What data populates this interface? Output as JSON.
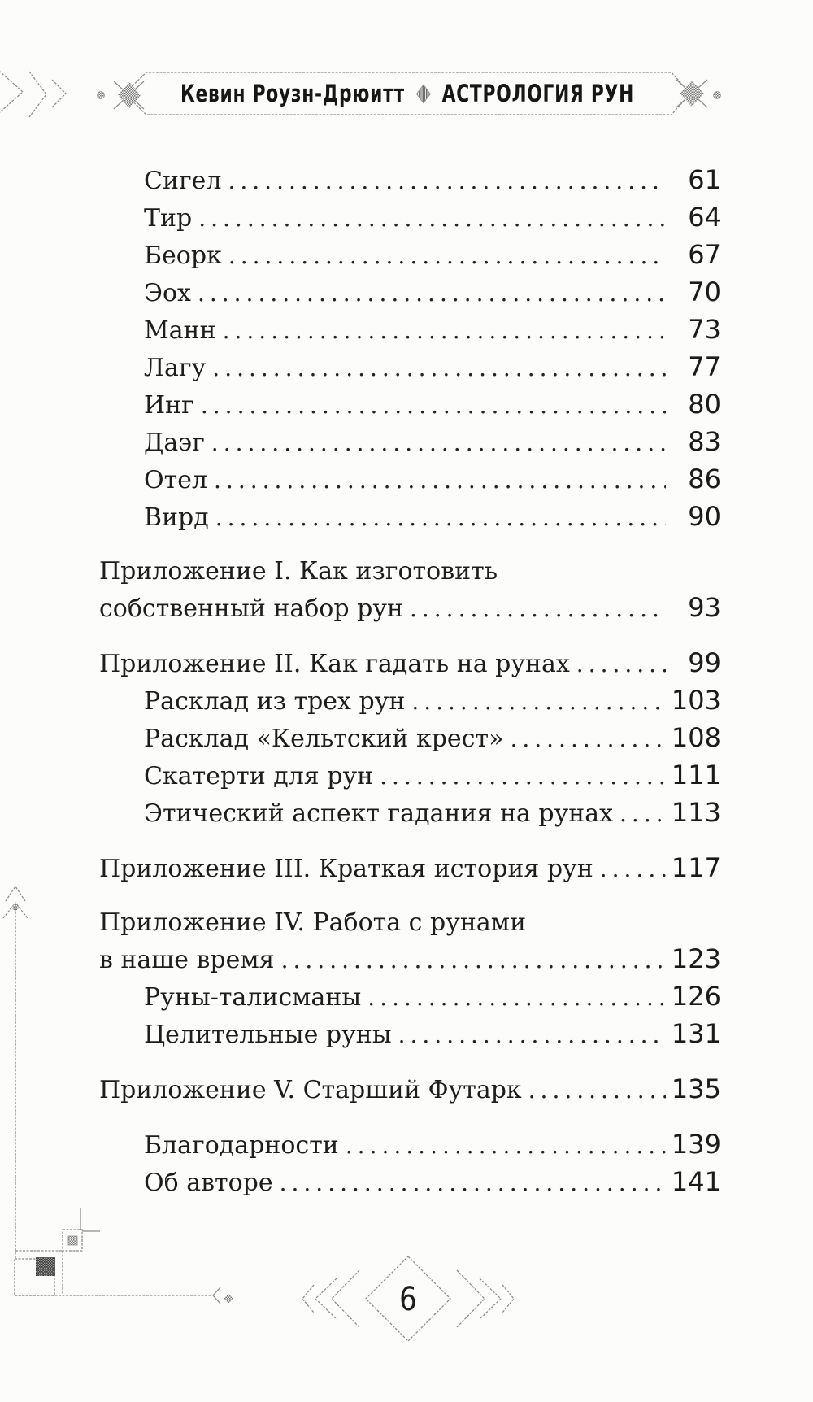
{
  "page": {
    "background_color": "#fcfcfb",
    "ink_color": "#1d1d1d",
    "ornament_color": "#8d8d8d"
  },
  "header": {
    "author": "Кевин Роузн-Дрюитт",
    "separator_icon": "diamond-icon",
    "book_title": "АСТРОЛОГИЯ РУН"
  },
  "toc": {
    "entries": [
      {
        "lines": [
          "Сигел"
        ],
        "page": "61",
        "indent": 1
      },
      {
        "lines": [
          "Тир"
        ],
        "page": "64",
        "indent": 1
      },
      {
        "lines": [
          "Беорк"
        ],
        "page": "67",
        "indent": 1
      },
      {
        "lines": [
          "Эох"
        ],
        "page": "70",
        "indent": 1
      },
      {
        "lines": [
          "Манн"
        ],
        "page": "73",
        "indent": 1
      },
      {
        "lines": [
          "Лагу"
        ],
        "page": "77",
        "indent": 1
      },
      {
        "lines": [
          "Инг"
        ],
        "page": "80",
        "indent": 1
      },
      {
        "lines": [
          "Даэг"
        ],
        "page": "83",
        "indent": 1
      },
      {
        "lines": [
          "Отел"
        ],
        "page": "86",
        "indent": 1
      },
      {
        "lines": [
          "Вирд"
        ],
        "page": "90",
        "indent": 1
      },
      {
        "lines": [
          "Приложение I. Как изготовить",
          "собственный набор рун"
        ],
        "page": "93",
        "indent": 0,
        "space_before": true
      },
      {
        "lines": [
          "Приложение II. Как гадать на рунах"
        ],
        "page": "99",
        "indent": 0,
        "space_before": true
      },
      {
        "lines": [
          "Расклад из трех рун"
        ],
        "page": "103",
        "indent": 1
      },
      {
        "lines": [
          "Расклад «Кельтский крест»"
        ],
        "page": "108",
        "indent": 1
      },
      {
        "lines": [
          "Скатерти для рун"
        ],
        "page": "111",
        "indent": 1
      },
      {
        "lines": [
          "Этический аспект гадания на рунах"
        ],
        "page": "113",
        "indent": 1
      },
      {
        "lines": [
          "Приложение III. Краткая история рун"
        ],
        "page": "117",
        "indent": 0,
        "space_before": true
      },
      {
        "lines": [
          "Приложение IV. Работа с рунами",
          "в наше время"
        ],
        "page": "123",
        "indent": 0,
        "space_before": true
      },
      {
        "lines": [
          "Руны-талисманы"
        ],
        "page": "126",
        "indent": 1
      },
      {
        "lines": [
          "Целительные руны"
        ],
        "page": "131",
        "indent": 1
      },
      {
        "lines": [
          "Приложение V. Старший Футарк"
        ],
        "page": "135",
        "indent": 0,
        "space_before": true
      },
      {
        "lines": [
          "Благодарности"
        ],
        "page": "139",
        "indent": 1,
        "space_before": true
      },
      {
        "lines": [
          "Об авторе"
        ],
        "page": "141",
        "indent": 1
      }
    ]
  },
  "footer": {
    "page_number": "6"
  }
}
